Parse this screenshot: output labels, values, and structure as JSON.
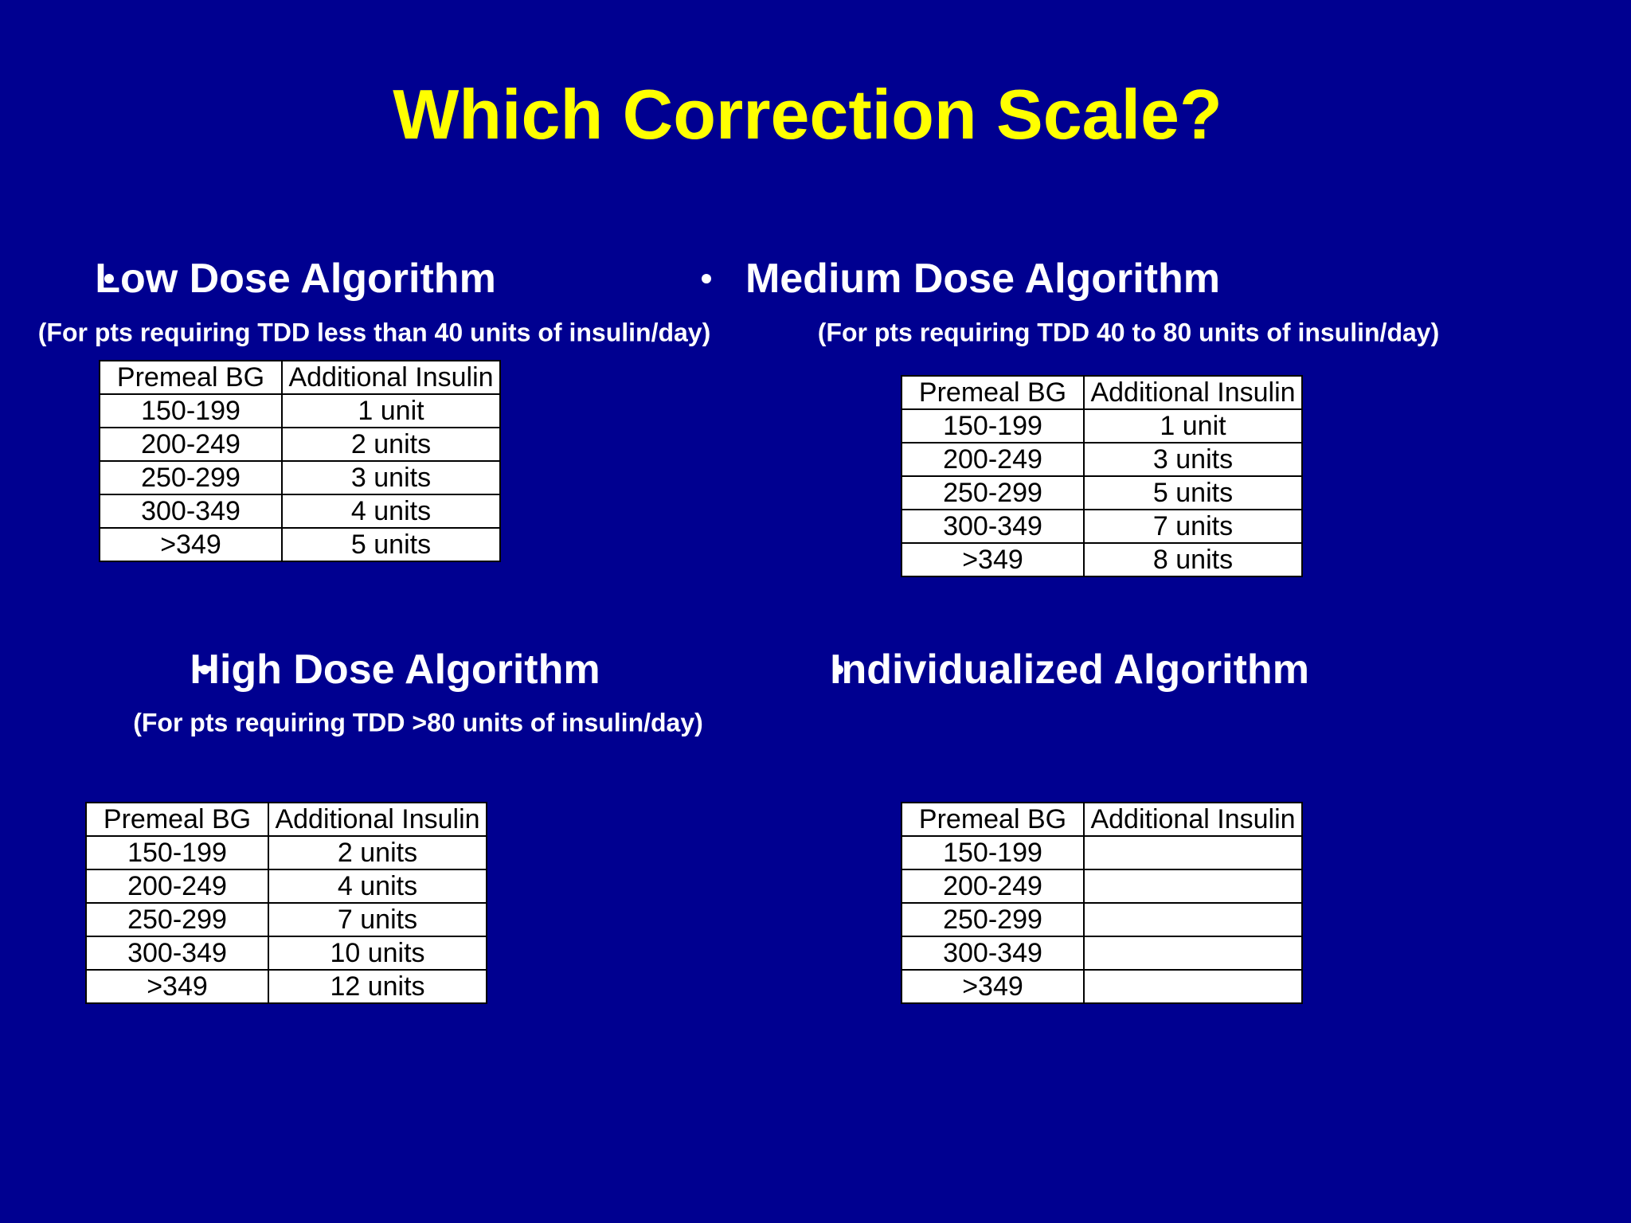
{
  "title": "Which Correction Scale?",
  "sections": [
    {
      "heading": "Low Dose Algorithm",
      "subtitle": "(For pts requiring TDD less than 40 units of insulin/day)",
      "table": {
        "header": [
          "Premeal BG",
          "Additional Insulin"
        ],
        "rows": [
          [
            "150-199",
            "1 unit"
          ],
          [
            "200-249",
            "2 units"
          ],
          [
            "250-299",
            "3 units"
          ],
          [
            "300-349",
            "4 units"
          ],
          [
            ">349",
            "5 units"
          ]
        ]
      }
    },
    {
      "heading": "Medium Dose Algorithm",
      "subtitle": "(For pts requiring TDD 40 to 80 units of insulin/day)",
      "table": {
        "header": [
          "Premeal BG",
          "Additional Insulin"
        ],
        "rows": [
          [
            "150-199",
            "1 unit"
          ],
          [
            "200-249",
            "3 units"
          ],
          [
            "250-299",
            "5 units"
          ],
          [
            "300-349",
            "7 units"
          ],
          [
            ">349",
            "8 units"
          ]
        ]
      }
    },
    {
      "heading": "High Dose Algorithm",
      "subtitle": "(For pts requiring TDD >80 units of insulin/day)",
      "table": {
        "header": [
          "Premeal BG",
          "Additional Insulin"
        ],
        "rows": [
          [
            "150-199",
            "2 units"
          ],
          [
            "200-249",
            "4 units"
          ],
          [
            "250-299",
            "7 units"
          ],
          [
            "300-349",
            "10 units"
          ],
          [
            ">349",
            "12 units"
          ]
        ]
      }
    },
    {
      "heading": "Individualized Algorithm",
      "table": {
        "header": [
          "Premeal BG",
          "Additional Insulin"
        ],
        "rows": [
          [
            "150-199"
          ],
          [
            "200-249"
          ],
          [
            "250-299"
          ],
          [
            "300-349"
          ],
          [
            ">349"
          ]
        ]
      }
    }
  ]
}
